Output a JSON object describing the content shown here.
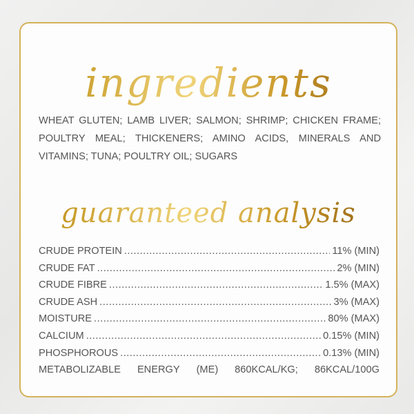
{
  "ingredients_title": "ingredients",
  "ingredients_text": "WHEAT GLUTEN; LAMB LIVER; SALMON; SHRIMP; CHICKEN FRAME; POULTRY MEAL; THICKENERS; AMINO ACIDS, MINERALS AND VITAMINS; TUNA; POULTRY OIL; SUGARS",
  "analysis_title": "guaranteed analysis",
  "analysis": [
    {
      "label": "CRUDE PROTEIN",
      "value": "11% (MIN)"
    },
    {
      "label": "CRUDE FAT",
      "value": "2% (MIN)"
    },
    {
      "label": "CRUDE FIBRE",
      "value": "1.5% (MAX)"
    },
    {
      "label": "CRUDE ASH",
      "value": "3% (MAX)"
    },
    {
      "label": "MOISTURE",
      "value": "80% (MAX)"
    },
    {
      "label": "CALCIUM",
      "value": "0.15% (MIN)"
    },
    {
      "label": "PHOSPHOROUS",
      "value": "0.13% (MIN)"
    }
  ],
  "energy": [
    "METABOLIZABLE",
    "ENERGY",
    "(ME)",
    "860KCAL/KG;",
    "86KCAL/100G"
  ],
  "colors": {
    "gold": "#d4b25a",
    "text": "#555555"
  }
}
